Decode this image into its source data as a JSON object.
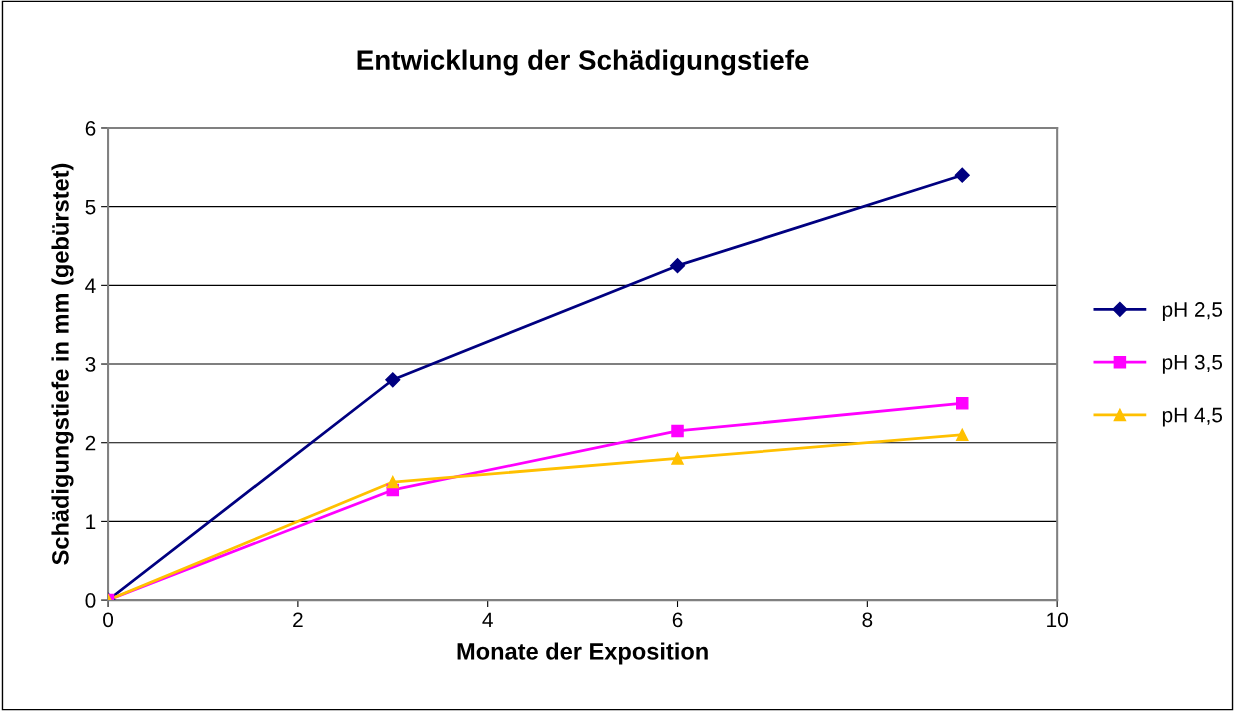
{
  "chart_data": {
    "type": "line",
    "title": "Entwicklung der Schädigungstiefe",
    "xlabel": "Monate der Exposition",
    "ylabel": "Schädigungstiefe in mm (gebürstet)",
    "x": [
      0,
      3,
      6,
      9
    ],
    "series": [
      {
        "name": "pH 2,5",
        "color": "#000080",
        "marker": "diamond",
        "values": [
          0,
          2.8,
          4.25,
          5.4
        ]
      },
      {
        "name": "pH 3,5",
        "color": "#ff00ff",
        "marker": "square",
        "values": [
          0,
          1.4,
          2.15,
          2.5
        ]
      },
      {
        "name": "pH 4,5",
        "color": "#ffc000",
        "marker": "triangle",
        "values": [
          0,
          1.5,
          1.8,
          2.1
        ]
      }
    ],
    "xlim": [
      0,
      10
    ],
    "xticks": [
      0,
      2,
      4,
      6,
      8,
      10
    ],
    "ylim": [
      0,
      6
    ],
    "yticks": [
      0,
      1,
      2,
      3,
      4,
      5,
      6
    ],
    "grid": "y",
    "legend": "right",
    "line_style": "solid"
  }
}
